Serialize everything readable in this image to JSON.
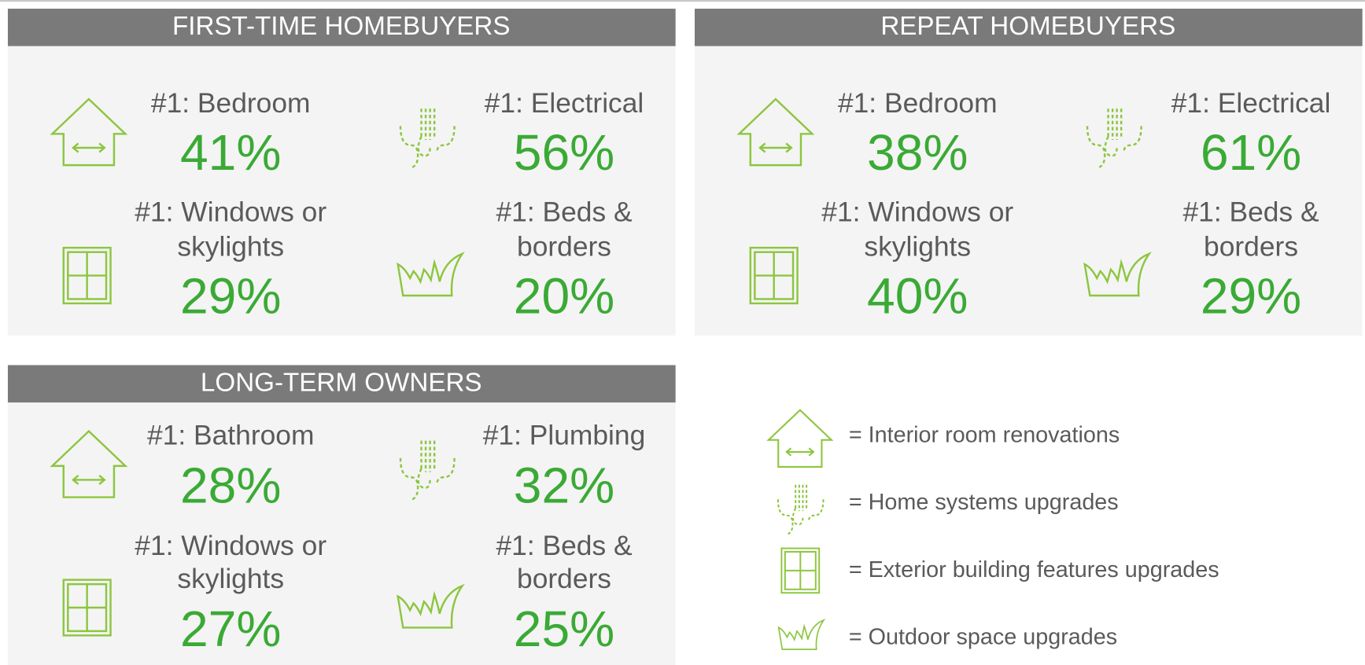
{
  "panels": [
    {
      "title": "FIRST-TIME HOMEBUYERS",
      "items": [
        {
          "label": [
            "#1: Bedroom"
          ],
          "value": "41%"
        },
        {
          "label": [
            "#1: Electrical"
          ],
          "value": "56%"
        },
        {
          "label": [
            "#1: Windows or",
            "skylights"
          ],
          "value": "29%"
        },
        {
          "label": [
            "#1: Beds &",
            "borders"
          ],
          "value": "20%"
        }
      ]
    },
    {
      "title": "REPEAT HOMEBUYERS",
      "items": [
        {
          "label": [
            "#1: Bedroom"
          ],
          "value": "38%"
        },
        {
          "label": [
            "#1: Electrical"
          ],
          "value": "61%"
        },
        {
          "label": [
            "#1: Windows or",
            "skylights"
          ],
          "value": "40%"
        },
        {
          "label": [
            "#1: Beds &",
            "borders"
          ],
          "value": "29%"
        }
      ]
    },
    {
      "title": "LONG-TERM OWNERS",
      "items": [
        {
          "label": [
            "#1: Bathroom"
          ],
          "value": "28%"
        },
        {
          "label": [
            "#1: Plumbing"
          ],
          "value": "32%"
        },
        {
          "label": [
            "#1: Windows or",
            "skylights"
          ],
          "value": "27%"
        },
        {
          "label": [
            "#1: Beds &",
            "borders"
          ],
          "value": "25%"
        }
      ]
    }
  ],
  "legend": [
    {
      "label": "=  Interior room renovations"
    },
    {
      "label": "=  Home systems upgrades"
    },
    {
      "label": "=  Exterior building features upgrades"
    },
    {
      "label": "=  Outdoor space upgrades"
    }
  ]
}
